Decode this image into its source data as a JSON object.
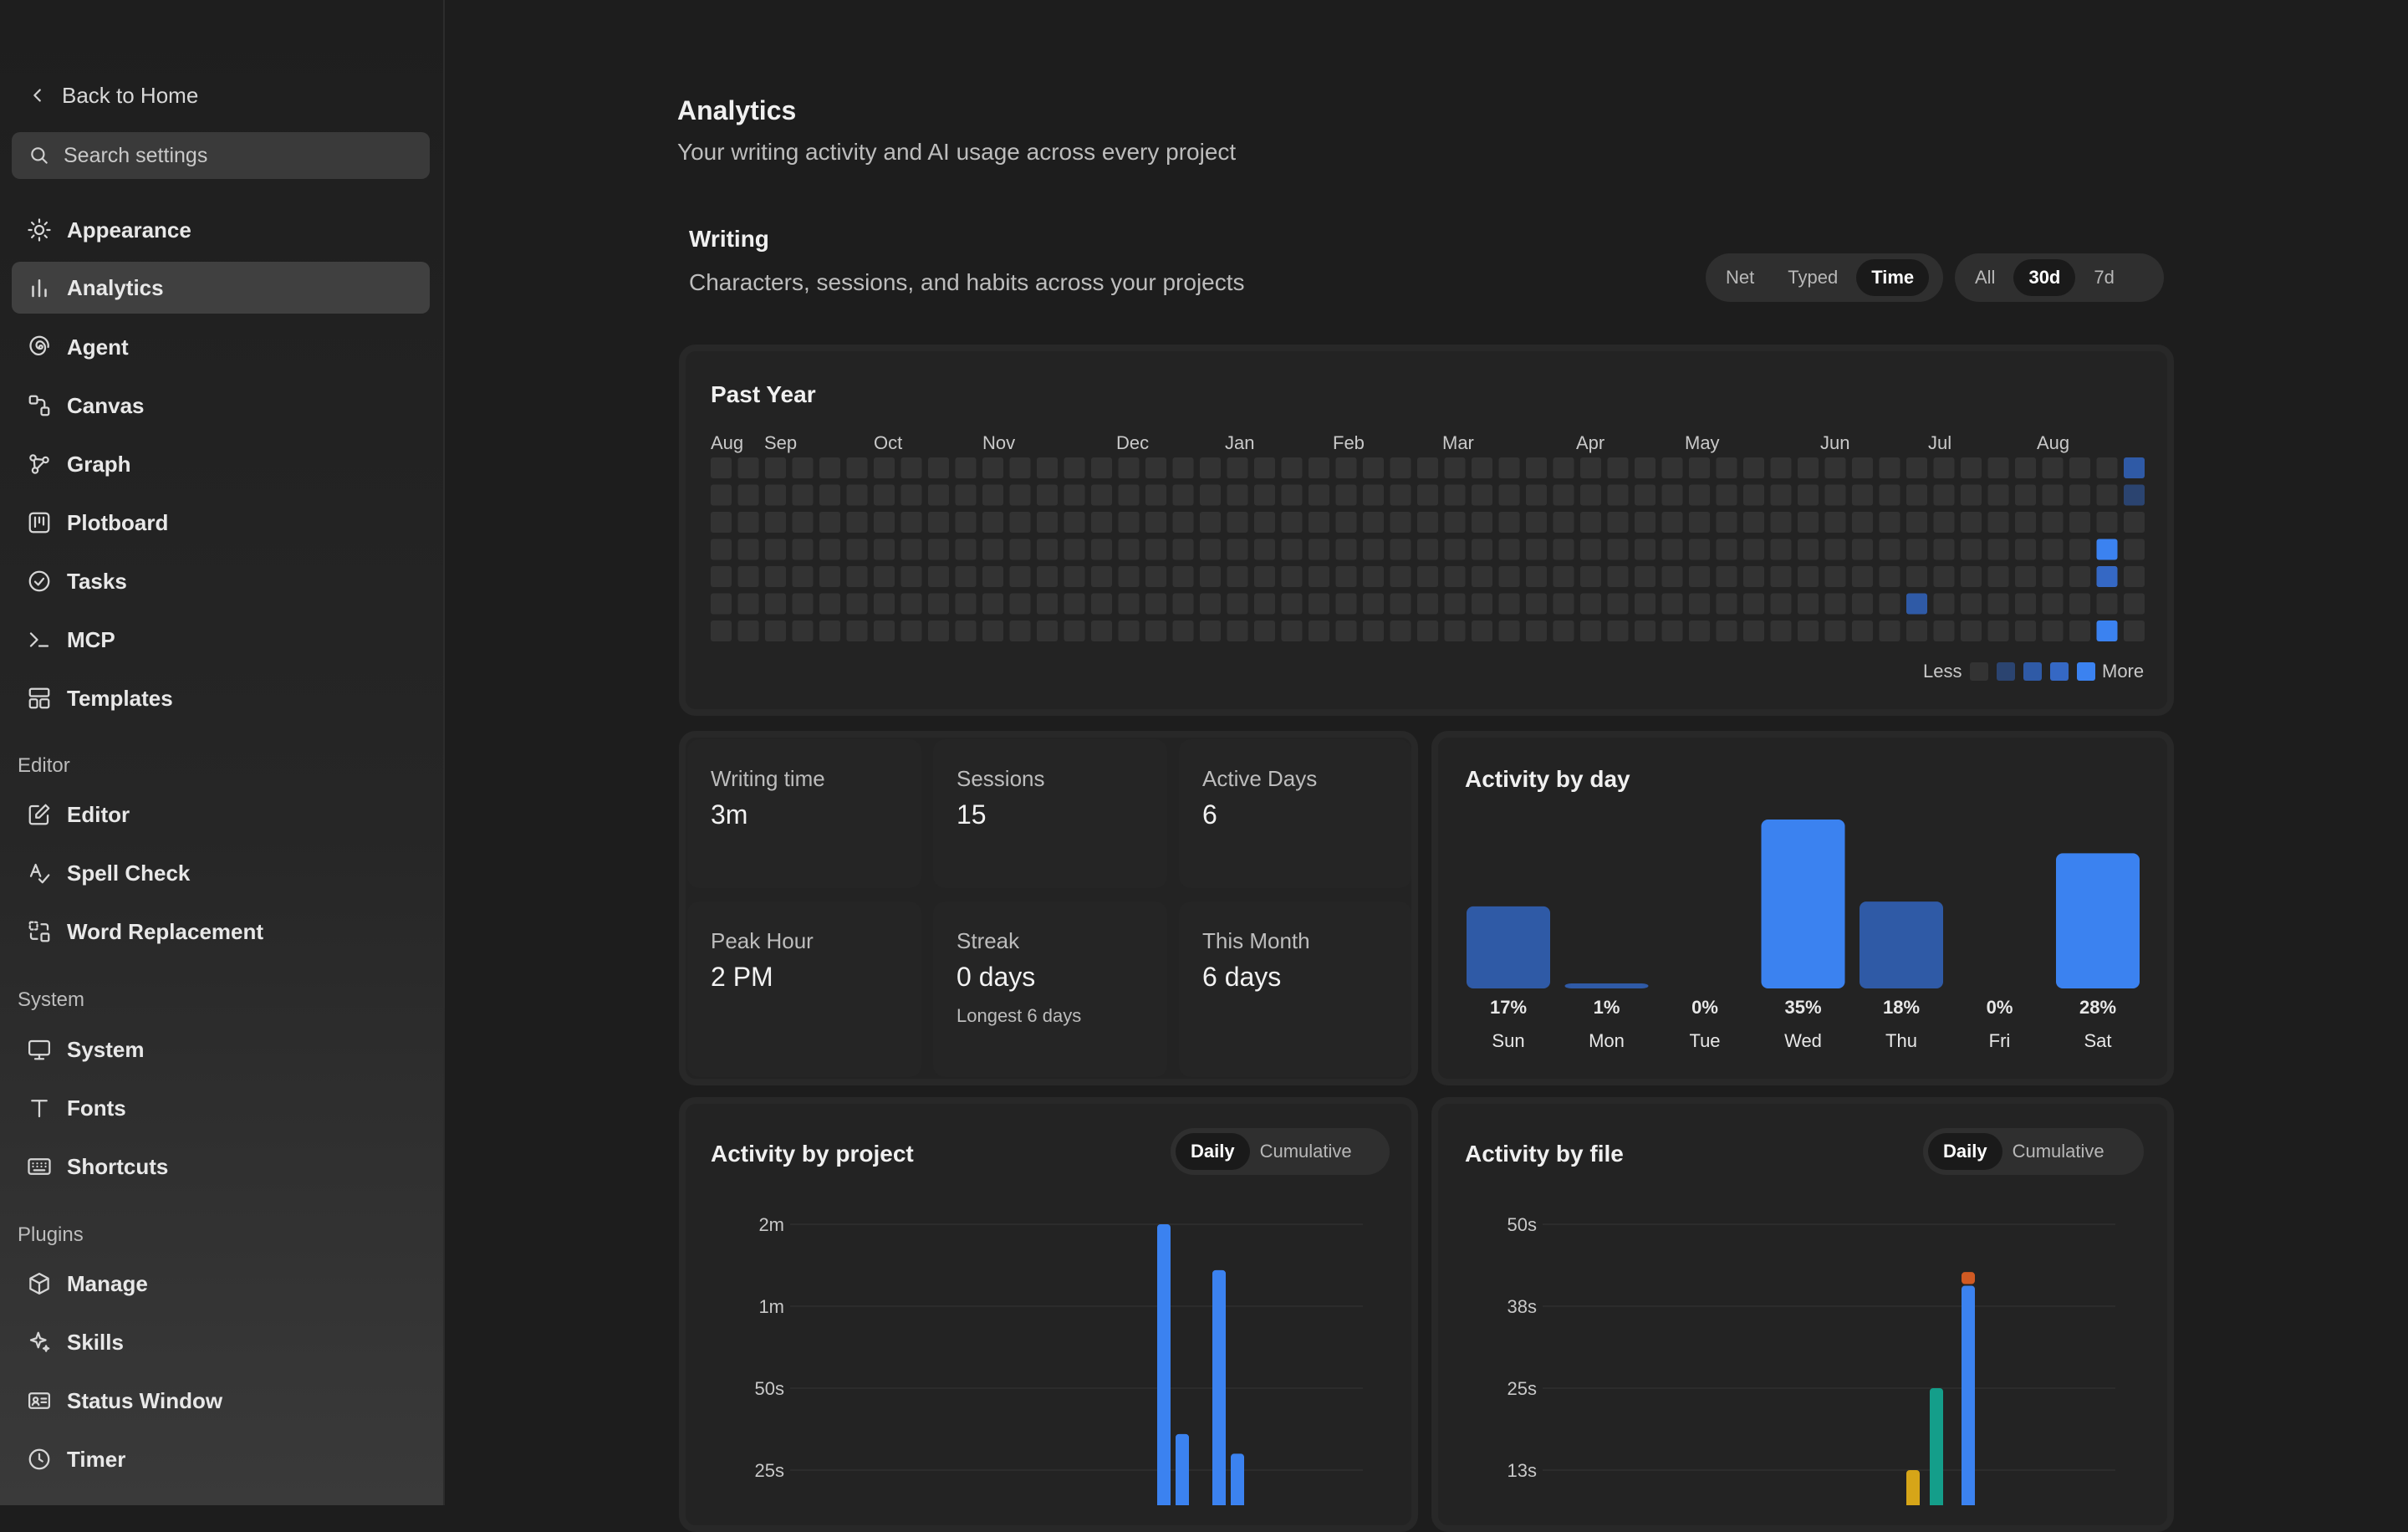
{
  "sidebar": {
    "back_label": "Back to Home",
    "search_placeholder": "Search settings",
    "items": [
      {
        "label": "Appearance",
        "icon": "sun-icon"
      },
      {
        "label": "Analytics",
        "icon": "bar-chart-icon"
      },
      {
        "label": "Agent",
        "icon": "spiral-icon"
      },
      {
        "label": "Canvas",
        "icon": "canvas-icon"
      },
      {
        "label": "Graph",
        "icon": "graph-icon"
      },
      {
        "label": "Plotboard",
        "icon": "plotboard-icon"
      },
      {
        "label": "Tasks",
        "icon": "check-circle-icon"
      },
      {
        "label": "MCP",
        "icon": "terminal-icon"
      },
      {
        "label": "Templates",
        "icon": "templates-icon"
      }
    ],
    "sections": {
      "editor": {
        "title": "Editor",
        "items": [
          {
            "label": "Editor",
            "icon": "pencil-square-icon"
          },
          {
            "label": "Spell Check",
            "icon": "spell-check-icon"
          },
          {
            "label": "Word Replacement",
            "icon": "replace-icon"
          }
        ]
      },
      "system": {
        "title": "System",
        "items": [
          {
            "label": "System",
            "icon": "monitor-icon"
          },
          {
            "label": "Fonts",
            "icon": "type-icon"
          },
          {
            "label": "Shortcuts",
            "icon": "keyboard-icon"
          }
        ]
      },
      "plugins": {
        "title": "Plugins",
        "items": [
          {
            "label": "Manage",
            "icon": "package-icon"
          },
          {
            "label": "Skills",
            "icon": "sparkle-icon"
          },
          {
            "label": "Status Window",
            "icon": "id-card-icon"
          },
          {
            "label": "Timer",
            "icon": "clock-icon"
          }
        ]
      }
    }
  },
  "page": {
    "title": "Analytics",
    "subtitle": "Your writing activity and AI usage across every project"
  },
  "writing": {
    "title": "Writing",
    "subtitle": "Characters, sessions, and habits across your projects",
    "metric_options": [
      "Net",
      "Typed",
      "Time"
    ],
    "metric_selected": "Time",
    "range_options": [
      "All",
      "30d",
      "7d"
    ],
    "range_selected": "30d"
  },
  "heatmap": {
    "title": "Past Year",
    "months": [
      "Aug",
      "Sep",
      "Oct",
      "Nov",
      "Dec",
      "Jan",
      "Feb",
      "Mar",
      "Apr",
      "May",
      "Jun",
      "Jul",
      "Aug"
    ],
    "weeks": 53,
    "legend_less": "Less",
    "legend_more": "More",
    "colors": [
      "#333333",
      "#2b4470",
      "#2f5aa6",
      "#3568c4",
      "#3b82f0"
    ],
    "active_cells": [
      {
        "week": 52,
        "day": 0,
        "level": 2
      },
      {
        "week": 52,
        "day": 1,
        "level": 1
      },
      {
        "week": 51,
        "day": 3,
        "level": 4
      },
      {
        "week": 51,
        "day": 4,
        "level": 3
      },
      {
        "week": 51,
        "day": 6,
        "level": 4
      },
      {
        "week": 44,
        "day": 5,
        "level": 2
      }
    ]
  },
  "stats": [
    {
      "label": "Writing time",
      "value": "3m"
    },
    {
      "label": "Sessions",
      "value": "15"
    },
    {
      "label": "Active Days",
      "value": "6"
    },
    {
      "label": "Peak Hour",
      "value": "2 PM"
    },
    {
      "label": "Streak",
      "value": "0 days",
      "sub": "Longest 6 days"
    },
    {
      "label": "This Month",
      "value": "6 days"
    }
  ],
  "activity_by_day": {
    "title": "Activity by day",
    "bright_color": "#3b82f0",
    "dim_color": "#2f5aa6",
    "days": [
      {
        "day": "Sun",
        "pct": "17%",
        "value": 17,
        "bright": false
      },
      {
        "day": "Mon",
        "pct": "1%",
        "value": 1,
        "bright": false
      },
      {
        "day": "Tue",
        "pct": "0%",
        "value": 0,
        "bright": false
      },
      {
        "day": "Wed",
        "pct": "35%",
        "value": 35,
        "bright": true
      },
      {
        "day": "Thu",
        "pct": "18%",
        "value": 18,
        "bright": false
      },
      {
        "day": "Fri",
        "pct": "0%",
        "value": 0,
        "bright": false
      },
      {
        "day": "Sat",
        "pct": "28%",
        "value": 28,
        "bright": true
      }
    ]
  },
  "activity_by_project": {
    "title": "Activity by project",
    "toggle_options": [
      "Daily",
      "Cumulative"
    ],
    "toggle_selected": "Daily"
  },
  "activity_by_file": {
    "title": "Activity by file",
    "toggle_options": [
      "Daily",
      "Cumulative"
    ],
    "toggle_selected": "Daily"
  },
  "chart_data": [
    {
      "type": "bar",
      "title": "Activity by project",
      "yticks": [
        "25s",
        "50s",
        "1m",
        "2m"
      ],
      "ytick_values": [
        25,
        50,
        60,
        120
      ],
      "ylim": [
        0,
        120
      ],
      "x": [
        1,
        2,
        3,
        4
      ],
      "values": [
        100,
        36,
        86,
        30
      ],
      "color": "#3b82f0"
    },
    {
      "type": "bar",
      "title": "Activity by file",
      "yticks": [
        "13s",
        "25s",
        "38s",
        "50s"
      ],
      "ytick_values": [
        13,
        25,
        38,
        50
      ],
      "ylim": [
        0,
        50
      ],
      "stacks": [
        {
          "segments": [
            {
              "value": 4,
              "color": "#5fb043"
            },
            {
              "value": 9,
              "color": "#d6a518"
            }
          ]
        },
        {
          "segments": [
            {
              "value": 25,
              "color": "#149e8a"
            }
          ]
        },
        {
          "segments": [
            {
              "value": 40,
              "color": "#3b82f0"
            },
            {
              "value": 2,
              "color": "#d05a23"
            }
          ]
        }
      ]
    }
  ]
}
